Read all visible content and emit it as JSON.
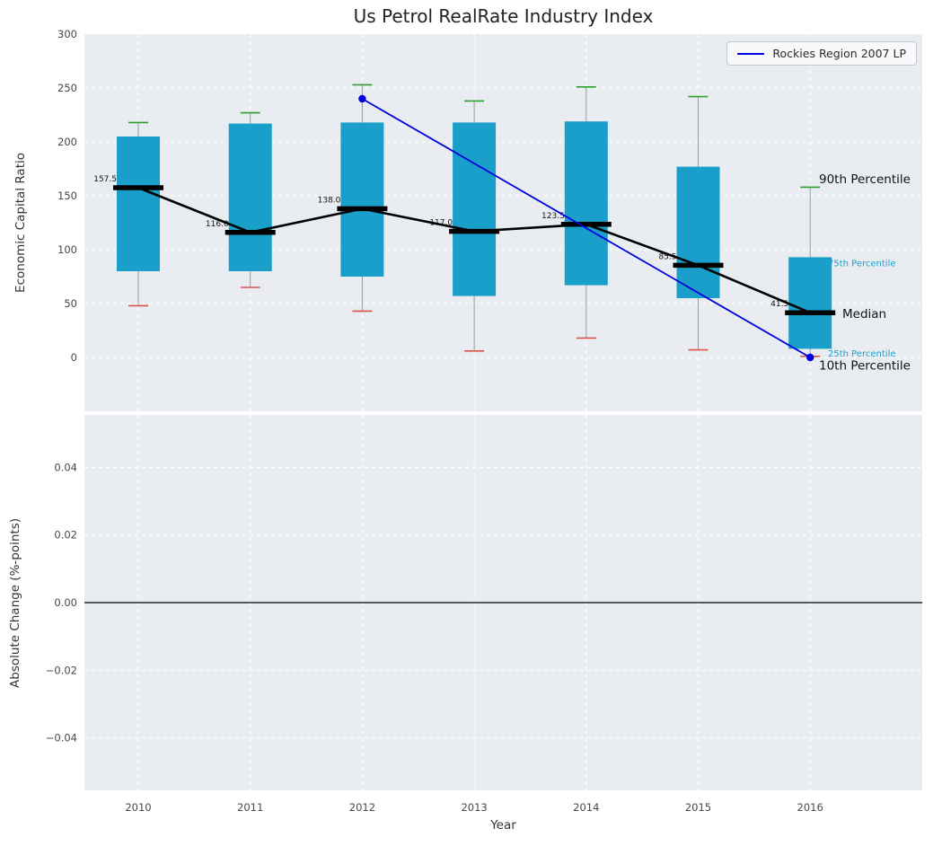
{
  "chart_data": {
    "type": "boxplot",
    "title": "Us Petrol RealRate Industry Index",
    "xlabel": "Year",
    "categories": [
      "2010",
      "2011",
      "2012",
      "2013",
      "2014",
      "2015",
      "2016"
    ],
    "top_panel": {
      "ylabel": "Economic Capital Ratio",
      "ylim": [
        -50,
        300
      ],
      "yticks": [
        0,
        50,
        100,
        150,
        200,
        250,
        300
      ],
      "grid": true,
      "series": {
        "p10": [
          48,
          65,
          43,
          6,
          18,
          7,
          1
        ],
        "p25": [
          80,
          80,
          75,
          57,
          67,
          55,
          8
        ],
        "median": [
          157.5,
          116.0,
          138.0,
          117.0,
          123.5,
          85.5,
          41.5
        ],
        "p75": [
          205,
          217,
          218,
          218,
          219,
          177,
          93
        ],
        "p90": [
          218,
          227,
          253,
          238,
          251,
          242,
          158
        ]
      },
      "median_labels": [
        "157.5",
        "116.0",
        "138.0",
        "117.0",
        "123.5",
        "85.5",
        "41.5"
      ],
      "overlay_line": {
        "name": "Rockies Region 2007 LP",
        "x": [
          "2012",
          "2016"
        ],
        "y": [
          240,
          0
        ]
      },
      "annotations": [
        {
          "text": "90th Percentile",
          "value": 165,
          "style": "large",
          "x": 912
        },
        {
          "text": "75th Percentile",
          "value": 88,
          "style": "small",
          "x": 922
        },
        {
          "text": "Median",
          "value": 40,
          "style": "large",
          "x": 938
        },
        {
          "text": "25th Percentile",
          "value": 4,
          "style": "small",
          "x": 922
        },
        {
          "text": "10th Percentile",
          "value": -8,
          "style": "large",
          "x": 912
        }
      ]
    },
    "bottom_panel": {
      "ylabel": "Absolute Change (%-points)",
      "ylim": [
        -0.0555,
        0.0555
      ],
      "yticks": [
        -0.04,
        -0.02,
        0,
        0.02,
        0.04
      ],
      "zero_line": 0,
      "grid": true
    },
    "legend": {
      "position": "upper right",
      "entries": [
        "Rockies Region 2007 LP"
      ]
    },
    "colors": {
      "box": "#1a9fca",
      "median_line": "#000000",
      "p90_cap": "#2ca02c",
      "p10_cap": "#d9544d",
      "whisker": "#999999",
      "overlay": "#0000dd",
      "plot_background": "#e9edf2",
      "grid": "#ffffff",
      "annotation_large": "#111111",
      "annotation_small": "#1a9fca",
      "tick_label": "#47474f"
    }
  }
}
